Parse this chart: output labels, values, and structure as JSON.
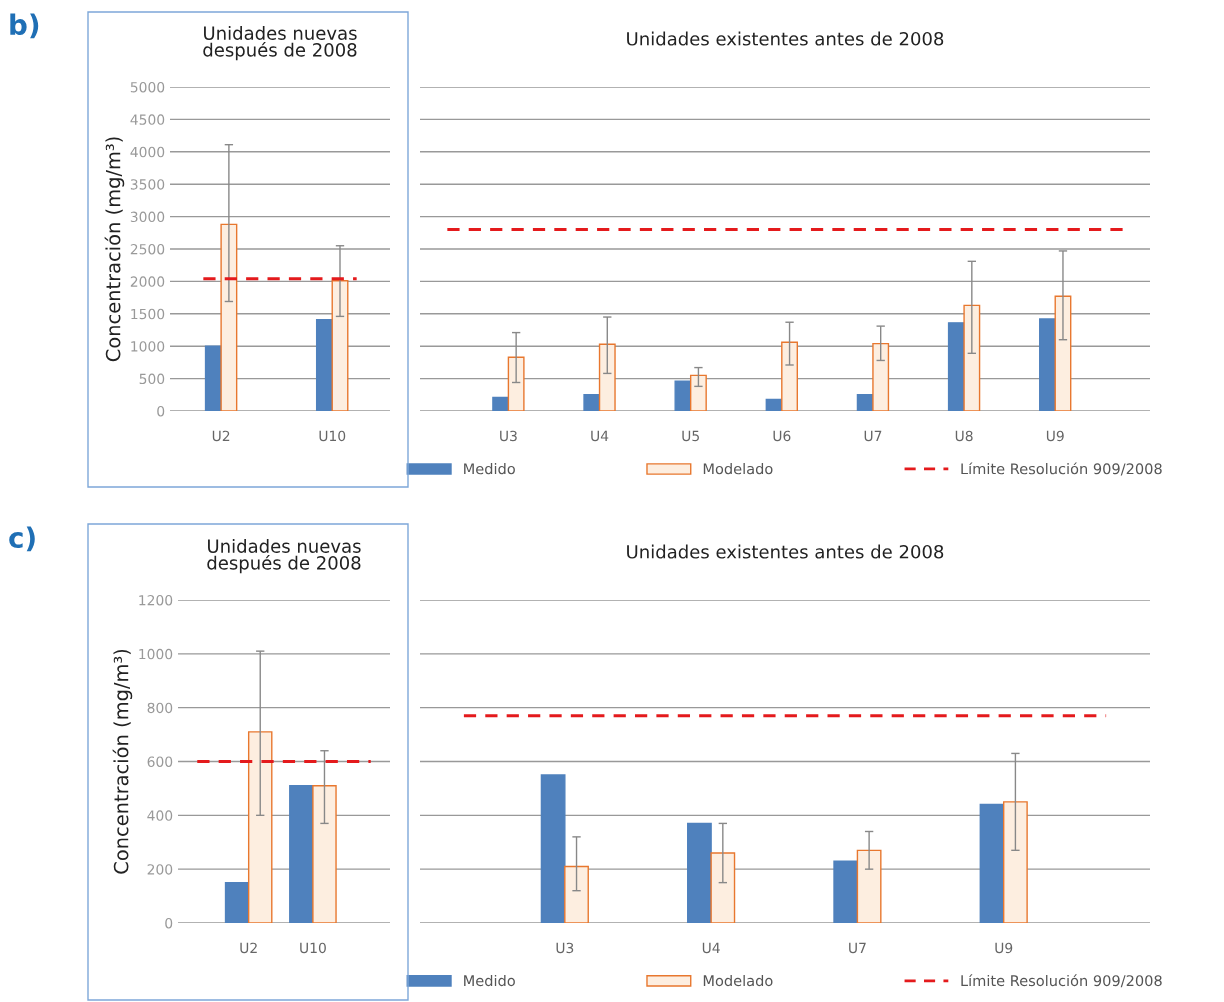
{
  "chart_data": [
    {
      "type": "bar",
      "title": "Unidades nuevas\ndespués de 2008",
      "ylabel": "Concentración (mg/m³)",
      "categories": [
        "U2",
        "U10"
      ],
      "annotations": [
        "b)"
      ],
      "series": [
        {
          "color": "#4f81bd",
          "values": [
            1000,
            1410
          ]
        },
        {
          "color": "#fdeee0",
          "values": [
            2880,
            2010
          ],
          "errors": [
            [
              1690,
              4110
            ],
            [
              1460,
              2550
            ]
          ]
        }
      ],
      "ylim": [
        0,
        5000
      ],
      "yticks": [
        0,
        500,
        1000,
        1500,
        2000,
        2500,
        3000,
        3500,
        4000,
        4500,
        5000
      ],
      "grid": "y",
      "ref_lines": [
        {
          "axis": "y",
          "value": 2040,
          "color": "#e41a1c",
          "line_style": "dashed"
        }
      ]
    },
    {
      "type": "bar",
      "title": "Unidades existentes antes de 2008",
      "categories": [
        "U3",
        "U4",
        "U5",
        "U6",
        "U7",
        "U8",
        "U9"
      ],
      "series": [
        {
          "name": "Medido",
          "color": "#4f81bd",
          "values": [
            210,
            250,
            460,
            180,
            250,
            1360,
            1420
          ]
        },
        {
          "name": "Modelado",
          "color": "#fdeee0",
          "values": [
            830,
            1030,
            550,
            1060,
            1040,
            1630,
            1770
          ],
          "errors": [
            [
              440,
              1210
            ],
            [
              580,
              1450
            ],
            [
              380,
              670
            ],
            [
              710,
              1370
            ],
            [
              780,
              1310
            ],
            [
              890,
              2310
            ],
            [
              1100,
              2470
            ]
          ]
        }
      ],
      "ylim": [
        0,
        5000
      ],
      "yticks": [
        0,
        500,
        1000,
        1500,
        2000,
        2500,
        3000,
        3500,
        4000,
        4500,
        5000
      ],
      "grid": "y",
      "tick_labels": "x",
      "legend": "bottom",
      "ref_lines": [
        {
          "axis": "y",
          "value": 2800,
          "label": "Límite Resolución 909/2008",
          "color": "#e41a1c",
          "line_style": "dashed"
        }
      ]
    },
    {
      "type": "bar",
      "title": "Unidades nuevas\ndespués de 2008",
      "ylabel": "Concentración (mg/m³)",
      "categories": [
        "U2",
        "U10"
      ],
      "annotations": [
        "c)"
      ],
      "series": [
        {
          "color": "#4f81bd",
          "values": [
            150,
            510
          ]
        },
        {
          "color": "#fdeee0",
          "values": [
            710,
            510
          ],
          "errors": [
            [
              400,
              1010
            ],
            [
              370,
              640
            ]
          ]
        }
      ],
      "ylim": [
        0,
        1200
      ],
      "yticks": [
        0,
        200,
        400,
        600,
        800,
        1000,
        1200
      ],
      "grid": "y",
      "ref_lines": [
        {
          "axis": "y",
          "value": 600,
          "color": "#e41a1c",
          "line_style": "dashed"
        }
      ]
    },
    {
      "type": "bar",
      "title": "Unidades existentes antes de 2008",
      "categories": [
        "U3",
        "U4",
        "U7",
        "U9"
      ],
      "series": [
        {
          "name": "Medido",
          "color": "#4f81bd",
          "values": [
            550,
            370,
            230,
            440
          ]
        },
        {
          "name": "Modelado",
          "color": "#fdeee0",
          "values": [
            210,
            260,
            270,
            450
          ],
          "errors": [
            [
              120,
              320
            ],
            [
              150,
              370
            ],
            [
              200,
              340
            ],
            [
              270,
              630
            ]
          ]
        }
      ],
      "ylim": [
        0,
        1200
      ],
      "yticks": [
        0,
        200,
        400,
        600,
        800,
        1000,
        1200
      ],
      "grid": "y",
      "tick_labels": "x",
      "legend": "bottom",
      "ref_lines": [
        {
          "axis": "y",
          "value": 770,
          "label": "Límite Resolución 909/2008",
          "color": "#e41a1c",
          "line_style": "dashed"
        }
      ]
    }
  ]
}
